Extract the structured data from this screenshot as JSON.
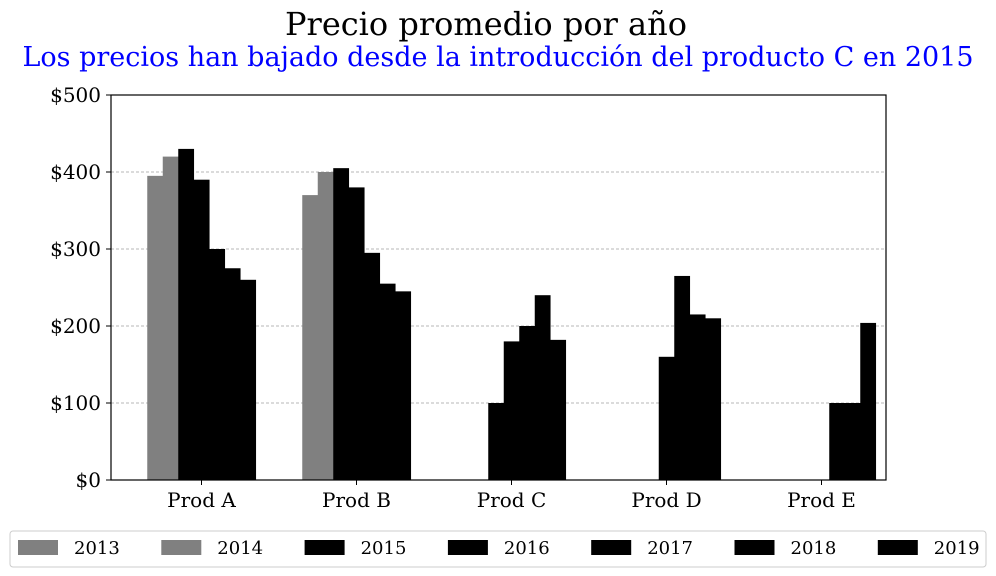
{
  "chart_data": {
    "type": "bar",
    "title": "Precio promedio por año",
    "subtitle": "Los precios han bajado desde la introducción del producto C en 2015",
    "subtitle_color": "#0000ff",
    "xlabel": "",
    "ylabel": "",
    "categories": [
      "Prod A",
      "Prod B",
      "Prod C",
      "Prod D",
      "Prod E"
    ],
    "ylim": [
      0,
      500
    ],
    "y_ticks": [
      0,
      100,
      200,
      300,
      400,
      500
    ],
    "y_tick_labels": [
      "$0",
      "$100",
      "$200",
      "$300",
      "$400",
      "$500"
    ],
    "grid": "y-dashed",
    "legend_position": "bottom",
    "series": [
      {
        "name": "2013",
        "color": "#808080",
        "values": [
          395,
          370,
          null,
          null,
          null
        ]
      },
      {
        "name": "2014",
        "color": "#808080",
        "values": [
          420,
          400,
          null,
          null,
          null
        ]
      },
      {
        "name": "2015",
        "color": "#000000",
        "values": [
          430,
          405,
          100,
          null,
          null
        ]
      },
      {
        "name": "2016",
        "color": "#000000",
        "values": [
          390,
          380,
          180,
          160,
          null
        ]
      },
      {
        "name": "2017",
        "color": "#000000",
        "values": [
          300,
          295,
          200,
          265,
          100
        ]
      },
      {
        "name": "2018",
        "color": "#000000",
        "values": [
          275,
          255,
          240,
          215,
          100
        ]
      },
      {
        "name": "2019",
        "color": "#000000",
        "values": [
          260,
          245,
          182,
          210,
          204
        ]
      }
    ]
  }
}
